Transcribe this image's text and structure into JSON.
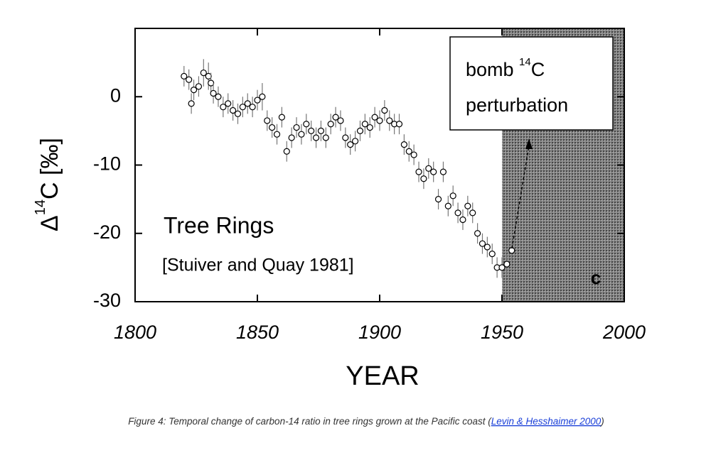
{
  "chart_data": {
    "type": "scatter",
    "y_label": {
      "prefix": "Δ",
      "sup": "14",
      "suffix": "C [‰]"
    },
    "x_label": "YEAR",
    "xlim": [
      1800,
      2000
    ],
    "xticks": [
      1800,
      1850,
      1900,
      1950,
      2000
    ],
    "ylim": [
      -30,
      10
    ],
    "yticks": [
      -30,
      -20,
      -10,
      0
    ],
    "shade_x": [
      1950,
      2000
    ],
    "annotations": {
      "tree_rings": "Tree Rings",
      "source": "[Stuiver and Quay 1981]",
      "panel": "c",
      "bomb": {
        "start": "bomb ",
        "sup": "14",
        "end": "C",
        "line2": "perturbation"
      }
    },
    "series": [
      {
        "name": "Tree Rings",
        "color": "#000000",
        "x": [
          1820,
          1822,
          1823,
          1824,
          1826,
          1828,
          1830,
          1831,
          1832,
          1834,
          1836,
          1838,
          1840,
          1842,
          1844,
          1846,
          1848,
          1850,
          1852,
          1854,
          1856,
          1858,
          1860,
          1862,
          1864,
          1866,
          1868,
          1870,
          1872,
          1874,
          1876,
          1878,
          1880,
          1882,
          1884,
          1886,
          1888,
          1890,
          1892,
          1894,
          1896,
          1898,
          1900,
          1902,
          1904,
          1906,
          1908,
          1910,
          1912,
          1914,
          1916,
          1918,
          1920,
          1922,
          1924,
          1926,
          1928,
          1930,
          1932,
          1934,
          1936,
          1938,
          1940,
          1942,
          1944,
          1946,
          1948,
          1950,
          1952,
          1954
        ],
        "values": [
          3,
          2.5,
          -1,
          1,
          1.5,
          3.5,
          3,
          2,
          0.5,
          0,
          -1.5,
          -1,
          -2,
          -2.5,
          -1.5,
          -1,
          -1.5,
          -0.5,
          0,
          -3.5,
          -4.5,
          -5.5,
          -3,
          -8,
          -6,
          -4.5,
          -5.5,
          -4,
          -5,
          -6,
          -5,
          -6,
          -4,
          -3,
          -3.5,
          -6,
          -7,
          -6.5,
          -5,
          -4,
          -4.5,
          -3,
          -3.5,
          -2,
          -3.5,
          -4,
          -4,
          -7,
          -8,
          -8.5,
          -11,
          -12,
          -10.5,
          -11,
          -15,
          -11,
          -16,
          -14.5,
          -17,
          -18,
          -16,
          -17,
          -20,
          -21.5,
          -22,
          -23,
          -25,
          -25,
          -24.5,
          -22.5
        ],
        "errors": [
          1.5,
          1.5,
          1.5,
          1.5,
          1.5,
          2,
          2,
          1.5,
          1.5,
          1.5,
          1.5,
          1.5,
          1.5,
          1.5,
          1.5,
          1.5,
          1.5,
          1.5,
          2,
          1.5,
          1.5,
          1.5,
          1.5,
          1.5,
          1.5,
          1.5,
          1.5,
          1.5,
          1.5,
          1.5,
          1.5,
          1.5,
          1.5,
          1.5,
          1.5,
          1.5,
          1.5,
          1.5,
          1.5,
          1.5,
          1.5,
          1.5,
          1.5,
          1.5,
          1.5,
          1.5,
          1.5,
          1.5,
          1.5,
          1.5,
          1.5,
          1.5,
          1.5,
          1.5,
          1.5,
          1.5,
          1.5,
          1.5,
          1.5,
          1.5,
          1.5,
          1.5,
          1.5,
          1.5,
          1.5,
          1.5,
          1.5,
          1.5,
          1.5,
          1.5
        ]
      }
    ]
  },
  "caption": {
    "text": "Figure 4: Temporal change of carbon-14 ratio in tree rings grown at the Pacific coast (",
    "link": "Levin & Hesshaimer 2000",
    "end": ")"
  }
}
